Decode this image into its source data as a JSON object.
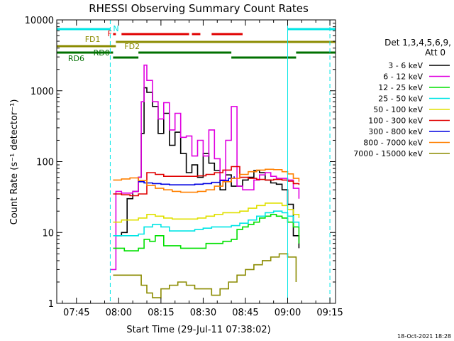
{
  "chart_data": {
    "type": "line",
    "title": "RHESSI Observing Summary Count Rates",
    "xlabel": "Start Time (29-Jul-11 07:38:02)",
    "ylabel": "Count Rate (s⁻¹ detector⁻¹)",
    "y_scale": "log",
    "ylim": [
      1,
      10000
    ],
    "xlim": [
      "07:38",
      "09:17"
    ],
    "grid": false,
    "x_ticks": [
      "07:45",
      "08:00",
      "08:15",
      "08:30",
      "08:45",
      "09:00",
      "09:15"
    ],
    "y_ticks": [
      "1",
      "10",
      "100",
      "1000",
      "10000"
    ],
    "legend_placement": "right",
    "legend_header": [
      "Det 1,3,4,5,6,9,",
      "Att 0"
    ],
    "footer_date": "18-Oct-2021 18:28",
    "bar_labels": {
      "N": "N",
      "F": "F",
      "FD1": "FD1",
      "FD2": "FD2",
      "RD0": "RD0",
      "RD6": "RD6"
    },
    "markers_vertical_solid": [
      "07:38",
      "09:00"
    ],
    "markers_vertical_dashed": [
      "07:57",
      "09:15"
    ],
    "state_bars": [
      {
        "name": "N",
        "color": "#00e5e5",
        "segments": [
          [
            "07:38",
            "07:57"
          ],
          [
            "09:00",
            "09:17"
          ]
        ]
      },
      {
        "name": "F",
        "color": "#e00000",
        "segments": [
          [
            "07:58",
            "07:59"
          ],
          [
            "08:01",
            "08:25"
          ],
          [
            "08:26",
            "08:29"
          ],
          [
            "08:33",
            "08:44"
          ]
        ]
      },
      {
        "name": "FD1",
        "color": "#8b8b00",
        "segments": [
          [
            "07:38",
            "07:59"
          ]
        ]
      },
      {
        "name": "FD2",
        "color": "#8b8b00",
        "segments": [
          [
            "07:59",
            "09:17"
          ]
        ]
      },
      {
        "name": "RD0",
        "color": "#007000",
        "segments": [
          [
            "07:38",
            "07:58"
          ],
          [
            "08:07",
            "08:40"
          ],
          [
            "09:03",
            "09:17"
          ]
        ]
      },
      {
        "name": "RD6",
        "color": "#007000",
        "segments": [
          [
            "07:58",
            "08:07"
          ],
          [
            "08:40",
            "09:03"
          ]
        ]
      }
    ],
    "series": [
      {
        "name": "3 - 6 keV",
        "color": "#000000",
        "x": [
          "07:59",
          "08:01",
          "08:03",
          "08:05",
          "08:07",
          "08:08",
          "08:09",
          "08:10",
          "08:12",
          "08:14",
          "08:16",
          "08:18",
          "08:20",
          "08:22",
          "08:24",
          "08:26",
          "08:28",
          "08:30",
          "08:32",
          "08:34",
          "08:36",
          "08:38",
          "08:40",
          "08:42",
          "08:44",
          "08:46",
          "08:48",
          "08:50",
          "08:52",
          "08:54",
          "08:56",
          "08:58",
          "09:00",
          "09:02",
          "09:04"
        ],
        "y": [
          9,
          10,
          30,
          38,
          60,
          250,
          1100,
          950,
          600,
          250,
          480,
          170,
          260,
          130,
          70,
          90,
          60,
          130,
          95,
          75,
          40,
          65,
          45,
          45,
          55,
          60,
          75,
          70,
          55,
          50,
          48,
          40,
          25,
          9,
          6
        ]
      },
      {
        "name": "6 - 12 keV",
        "color": "#e000e0",
        "x": [
          "07:57",
          "07:59",
          "08:01",
          "08:03",
          "08:05",
          "08:07",
          "08:08",
          "08:09",
          "08:10",
          "08:12",
          "08:14",
          "08:16",
          "08:18",
          "08:20",
          "08:22",
          "08:24",
          "08:26",
          "08:28",
          "08:30",
          "08:32",
          "08:34",
          "08:36",
          "08:38",
          "08:40",
          "08:42",
          "08:44",
          "08:46",
          "08:48",
          "08:50",
          "08:52",
          "08:54",
          "08:56",
          "08:58",
          "09:00",
          "09:02",
          "09:04"
        ],
        "y": [
          3,
          38,
          36,
          36,
          38,
          60,
          700,
          2300,
          1400,
          700,
          400,
          680,
          280,
          480,
          220,
          230,
          120,
          200,
          120,
          280,
          110,
          55,
          200,
          600,
          45,
          40,
          40,
          55,
          65,
          70,
          62,
          58,
          58,
          55,
          42,
          30
        ]
      },
      {
        "name": "12 - 25 keV",
        "color": "#00e000",
        "x": [
          "07:58",
          "08:02",
          "08:05",
          "08:07",
          "08:09",
          "08:11",
          "08:13",
          "08:16",
          "08:19",
          "08:22",
          "08:25",
          "08:28",
          "08:31",
          "08:34",
          "08:37",
          "08:40",
          "08:42",
          "08:44",
          "08:46",
          "08:48",
          "08:50",
          "08:52",
          "08:54",
          "08:56",
          "08:58",
          "09:00",
          "09:02",
          "09:04"
        ],
        "y": [
          6,
          5.5,
          5.5,
          6,
          8,
          7.5,
          9,
          6.5,
          6.5,
          6,
          6,
          6,
          7,
          7,
          7.5,
          8,
          11,
          12,
          13,
          14,
          16,
          17,
          18,
          17,
          16,
          14,
          12,
          7
        ]
      },
      {
        "name": "25 - 50 keV",
        "color": "#00e5e5",
        "x": [
          "07:58",
          "08:02",
          "08:05",
          "08:07",
          "08:09",
          "08:12",
          "08:15",
          "08:18",
          "08:21",
          "08:24",
          "08:27",
          "08:30",
          "08:33",
          "08:36",
          "08:40",
          "08:43",
          "08:46",
          "08:49",
          "08:52",
          "08:55",
          "08:58",
          "09:00",
          "09:02",
          "09:04"
        ],
        "y": [
          9,
          9,
          9,
          9.5,
          12,
          13,
          12,
          10.5,
          10.5,
          10.5,
          11,
          11.5,
          12,
          12,
          12.5,
          13.5,
          15,
          17,
          19,
          20,
          19,
          17,
          14,
          12
        ]
      },
      {
        "name": "50 - 100 keV",
        "color": "#e0e000",
        "x": [
          "07:58",
          "08:01",
          "08:04",
          "08:07",
          "08:10",
          "08:13",
          "08:16",
          "08:19",
          "08:22",
          "08:25",
          "08:28",
          "08:31",
          "08:34",
          "08:37",
          "08:40",
          "08:43",
          "08:46",
          "08:49",
          "08:52",
          "08:55",
          "08:58",
          "09:00",
          "09:02",
          "09:04"
        ],
        "y": [
          14,
          15,
          15,
          16,
          18,
          17,
          16,
          15.5,
          15.5,
          15.5,
          16,
          17,
          18,
          19,
          19,
          20,
          22,
          24,
          26,
          26,
          24,
          21,
          18,
          16
        ]
      },
      {
        "name": "100 - 300 keV",
        "color": "#e00000",
        "x": [
          "07:58",
          "08:01",
          "08:04",
          "08:07",
          "08:10",
          "08:13",
          "08:16",
          "08:19",
          "08:22",
          "08:25",
          "08:28",
          "08:31",
          "08:34",
          "08:37",
          "08:40",
          "08:43",
          "08:46",
          "08:49",
          "08:52",
          "08:55",
          "08:58",
          "09:00",
          "09:02",
          "09:04"
        ],
        "y": [
          35,
          34,
          33,
          35,
          70,
          66,
          62,
          62,
          62,
          62,
          63,
          66,
          70,
          76,
          85,
          60,
          58,
          56,
          55,
          56,
          55,
          53,
          49,
          47
        ]
      },
      {
        "name": "300 - 800 keV",
        "color": "#0000e0",
        "x": [
          "08:07",
          "08:09",
          "08:12",
          "08:15",
          "08:18",
          "08:21",
          "08:24",
          "08:27",
          "08:30",
          "08:33",
          "08:36",
          "08:39",
          "08:41"
        ],
        "y": [
          52,
          50,
          49,
          48,
          47,
          47,
          47,
          48,
          49,
          51,
          54,
          58,
          62
        ]
      },
      {
        "name": "800 - 7000 keV",
        "color": "#ff8000",
        "x": [
          "07:58",
          "08:01",
          "08:04",
          "08:07",
          "08:10",
          "08:13",
          "08:16",
          "08:19",
          "08:22",
          "08:25",
          "08:28",
          "08:31",
          "08:34",
          "08:37",
          "08:40",
          "08:43",
          "08:46",
          "08:49",
          "08:52",
          "08:55",
          "08:58",
          "09:00",
          "09:02",
          "09:04"
        ],
        "y": [
          55,
          57,
          59,
          54,
          46,
          42,
          40,
          38,
          37,
          37,
          38,
          40,
          45,
          52,
          58,
          66,
          72,
          76,
          78,
          77,
          72,
          67,
          58,
          52
        ]
      },
      {
        "name": "7000 - 15000 keV",
        "color": "#8b8b00",
        "x": [
          "07:58",
          "08:00",
          "08:03",
          "08:06",
          "08:08",
          "08:10",
          "08:12",
          "08:15",
          "08:18",
          "08:21",
          "08:24",
          "08:27",
          "08:30",
          "08:33",
          "08:36",
          "08:39",
          "08:42",
          "08:45",
          "08:48",
          "08:51",
          "08:54",
          "08:57",
          "09:00",
          "09:03"
        ],
        "y": [
          2.5,
          2.5,
          2.5,
          2.5,
          1.8,
          1.4,
          1.2,
          1.6,
          1.8,
          2,
          1.8,
          1.6,
          1.6,
          1.3,
          1.6,
          2,
          2.5,
          3,
          3.5,
          4,
          4.5,
          5,
          4.5,
          2
        ]
      }
    ]
  }
}
